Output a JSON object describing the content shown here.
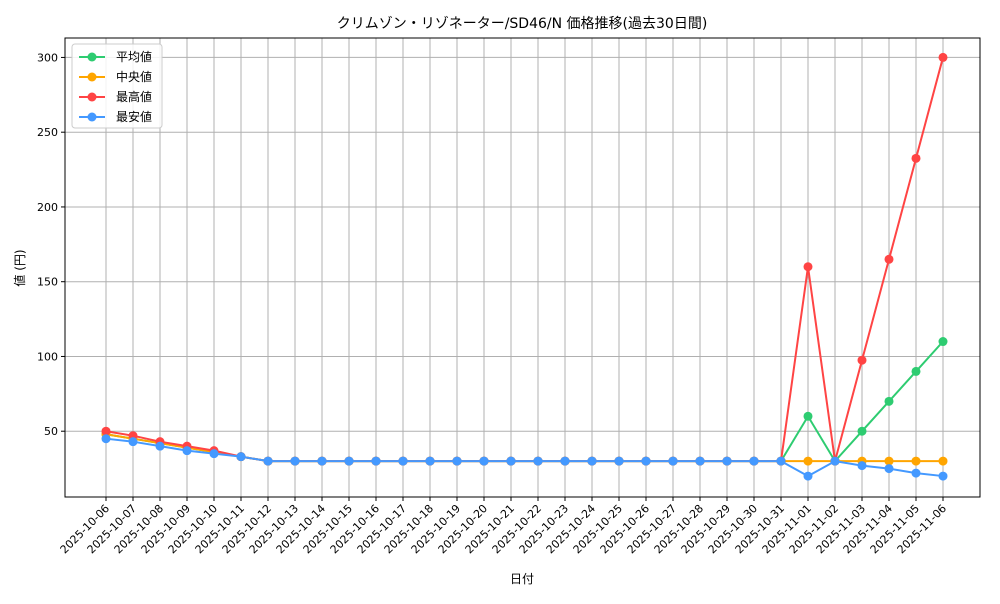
{
  "chart_data": {
    "type": "line",
    "title": "クリムゾン・リゾネーター/SD46/N 価格推移(過去30日間)",
    "xlabel": "日付",
    "ylabel": "値 (円)",
    "ylim": [
      6,
      313
    ],
    "yticks": [
      50,
      100,
      150,
      200,
      250,
      300
    ],
    "grid": true,
    "legend_position": "top-left",
    "x": [
      "2025-10-06",
      "2025-10-07",
      "2025-10-08",
      "2025-10-09",
      "2025-10-10",
      "2025-10-11",
      "2025-10-12",
      "2025-10-13",
      "2025-10-14",
      "2025-10-15",
      "2025-10-16",
      "2025-10-17",
      "2025-10-18",
      "2025-10-19",
      "2025-10-20",
      "2025-10-21",
      "2025-10-22",
      "2025-10-23",
      "2025-10-24",
      "2025-10-25",
      "2025-10-26",
      "2025-10-27",
      "2025-10-28",
      "2025-10-29",
      "2025-10-30",
      "2025-10-31",
      "2025-11-01",
      "2025-11-02",
      "2025-11-03",
      "2025-11-04",
      "2025-11-05",
      "2025-11-06"
    ],
    "series": [
      {
        "name": "平均値",
        "color": "#2ecc71",
        "values": [
          48,
          45,
          42,
          39,
          36,
          33,
          30,
          30,
          30,
          30,
          30,
          30,
          30,
          30,
          30,
          30,
          30,
          30,
          30,
          30,
          30,
          30,
          30,
          30,
          30,
          30,
          60,
          30,
          50,
          70,
          90,
          110
        ]
      },
      {
        "name": "中央値",
        "color": "#ffa500",
        "values": [
          48,
          45,
          42,
          39,
          36,
          33,
          30,
          30,
          30,
          30,
          30,
          30,
          30,
          30,
          30,
          30,
          30,
          30,
          30,
          30,
          30,
          30,
          30,
          30,
          30,
          30,
          30,
          30,
          30,
          30,
          30,
          30
        ]
      },
      {
        "name": "最高値",
        "color": "#ff4444",
        "values": [
          50,
          47,
          43,
          40,
          37,
          33,
          30,
          30,
          30,
          30,
          30,
          30,
          30,
          30,
          30,
          30,
          30,
          30,
          30,
          30,
          30,
          30,
          30,
          30,
          30,
          30,
          160,
          30,
          97.5,
          165,
          232.5,
          300
        ]
      },
      {
        "name": "最安値",
        "color": "#4499ff",
        "values": [
          45,
          43,
          40,
          37,
          35,
          33,
          30,
          30,
          30,
          30,
          30,
          30,
          30,
          30,
          30,
          30,
          30,
          30,
          30,
          30,
          30,
          30,
          30,
          30,
          30,
          30,
          20,
          30,
          27,
          25,
          22,
          20
        ]
      }
    ]
  }
}
